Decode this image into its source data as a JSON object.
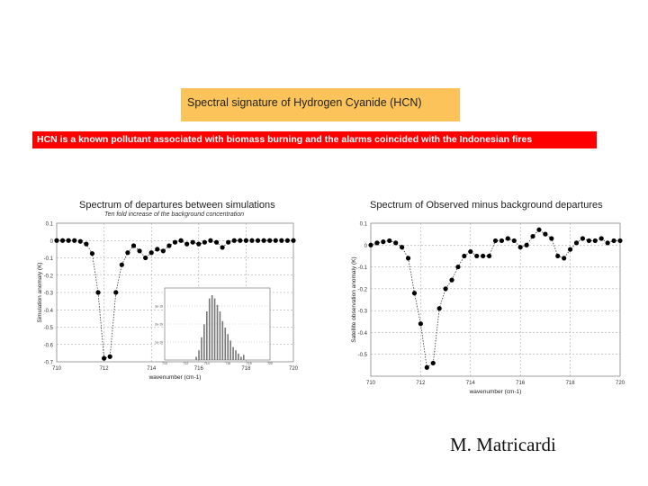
{
  "header": {
    "title": "Spectral signature of Hydrogen Cyanide (HCN)",
    "banner": "HCN is a known pollutant associated with biomass burning and the alarms coincided with the Indonesian fires"
  },
  "author": "M. Matricardi",
  "colors": {
    "title_box": "#fbc35a",
    "banner": "#ff0000",
    "banner_text": "#ffffff",
    "points": "#000000"
  },
  "chart_data": [
    {
      "type": "line",
      "title": "Spectrum of departures between simulations",
      "subtitle": "Ten fold increase of the background concentration",
      "xlabel": "wavenumber (cm-1)",
      "ylabel": "Simulation anomaly (K)",
      "xlim": [
        710,
        720
      ],
      "ylim": [
        -0.7,
        0.1
      ],
      "xticks": [
        710,
        712,
        714,
        716,
        718,
        720
      ],
      "xtick_labels": [
        "710",
        "712",
        "714",
        "716",
        "718",
        "720"
      ],
      "yticks": [
        0.1,
        0,
        -0.1,
        -0.2,
        -0.3,
        -0.4,
        -0.5,
        -0.6,
        -0.7
      ],
      "ytick_labels": [
        "0.1",
        "0",
        "-0.1",
        "-0.2",
        "-0.3",
        "-0.4",
        "-0.5",
        "-0.6",
        "-0.7"
      ],
      "grid": true,
      "series": [
        {
          "x": [
            710.0,
            710.25,
            710.5,
            710.75,
            711.0,
            711.25,
            711.5,
            711.75,
            712.0,
            712.25,
            712.5,
            712.75,
            713.0,
            713.25,
            713.5,
            713.75,
            714.0,
            714.25,
            714.5,
            714.75,
            715.0,
            715.25,
            715.5,
            715.75,
            716.0,
            716.25,
            716.5,
            716.75,
            717.0,
            717.25,
            717.5,
            717.75,
            718.0,
            718.25,
            718.5,
            718.75,
            719.0,
            719.25,
            719.5,
            719.75,
            720.0
          ],
          "y": [
            0.0,
            0.0,
            0.0,
            0.0,
            -0.005,
            -0.02,
            -0.075,
            -0.3,
            -0.68,
            -0.67,
            -0.3,
            -0.14,
            -0.07,
            -0.03,
            -0.06,
            -0.1,
            -0.07,
            -0.05,
            -0.06,
            -0.03,
            -0.01,
            0.0,
            -0.02,
            -0.01,
            -0.02,
            -0.01,
            0.0,
            -0.01,
            -0.04,
            -0.01,
            0.0,
            0.0,
            0.0,
            0.0,
            0.0,
            0.0,
            0.0,
            0.0,
            0.0,
            0.0,
            0.0
          ]
        }
      ],
      "inset": {
        "type": "bar",
        "xtick_labels": [
          "710",
          "712",
          "714",
          "716",
          "718",
          "720"
        ],
        "ytick_labels": [
          "3e-19",
          "2e-19",
          "1e-19"
        ],
        "x": [
          713.0,
          713.25,
          713.5,
          713.75,
          714.0,
          714.25,
          714.5,
          714.75,
          715.0,
          715.25,
          715.5,
          715.75,
          716.0,
          716.25,
          716.5,
          716.75,
          717.0,
          717.25,
          717.5
        ],
        "values": [
          0.05,
          0.15,
          0.35,
          0.55,
          0.75,
          0.95,
          1.0,
          0.95,
          0.85,
          0.75,
          0.6,
          0.5,
          0.4,
          0.3,
          0.2,
          0.15,
          0.1,
          0.05,
          0.08
        ]
      }
    },
    {
      "type": "line",
      "title": "Spectrum of Observed minus background departures",
      "xlabel": "wavenumber (cm-1)",
      "ylabel": "Satellite observation anomaly (K)",
      "xlim": [
        710,
        720
      ],
      "ylim": [
        -0.6,
        0.1
      ],
      "xticks": [
        710,
        712,
        714,
        716,
        718,
        720
      ],
      "xtick_labels": [
        "710",
        "712",
        "714",
        "716",
        "718",
        "720"
      ],
      "yticks": [
        0.1,
        0,
        -0.1,
        -0.2,
        -0.3,
        -0.4,
        -0.5,
        -0.6
      ],
      "ytick_labels": [
        "0.1",
        "0",
        "-0.1",
        "-0.2",
        "-0.3",
        "-0.4",
        "-0.5",
        ""
      ],
      "grid": true,
      "series": [
        {
          "x": [
            710.0,
            710.25,
            710.5,
            710.75,
            711.0,
            711.25,
            711.5,
            711.75,
            712.0,
            712.25,
            712.5,
            712.75,
            713.0,
            713.25,
            713.5,
            713.75,
            714.0,
            714.25,
            714.5,
            714.75,
            715.0,
            715.25,
            715.5,
            715.75,
            716.0,
            716.25,
            716.5,
            716.75,
            717.0,
            717.25,
            717.5,
            717.75,
            718.0,
            718.25,
            718.5,
            718.75,
            719.0,
            719.25,
            719.5,
            719.75,
            720.0
          ],
          "y": [
            0.0,
            0.01,
            0.015,
            0.02,
            0.01,
            -0.01,
            -0.06,
            -0.22,
            -0.36,
            -0.56,
            -0.54,
            -0.29,
            -0.2,
            -0.16,
            -0.1,
            -0.05,
            -0.03,
            -0.05,
            -0.05,
            -0.05,
            0.02,
            0.02,
            0.03,
            0.02,
            -0.01,
            0.0,
            0.04,
            0.07,
            0.05,
            0.03,
            -0.05,
            -0.06,
            -0.02,
            0.01,
            0.03,
            0.02,
            0.02,
            0.03,
            0.01,
            0.02,
            0.02
          ]
        }
      ]
    }
  ]
}
